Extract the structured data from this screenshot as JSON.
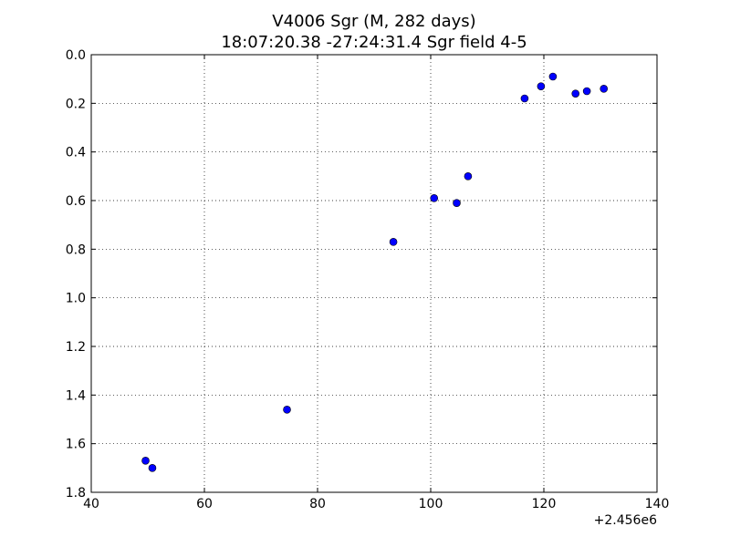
{
  "chart_data": {
    "type": "scatter",
    "title": "V4006 Sgr (M, 282 days)",
    "subtitle": "18:07:20.38 -27:24:31.4 Sgr field 4-5",
    "x_offset_label": "+2.456e6",
    "xlim": [
      40,
      140
    ],
    "ylim": [
      0.0,
      1.8
    ],
    "y_inverted": true,
    "grid": true,
    "x_ticks": [
      40,
      60,
      80,
      100,
      120,
      140
    ],
    "x_tick_labels": [
      "40",
      "60",
      "80",
      "100",
      "120",
      "140"
    ],
    "y_ticks": [
      0.0,
      0.2,
      0.4,
      0.6,
      0.8,
      1.0,
      1.2,
      1.4,
      1.6,
      1.8
    ],
    "y_tick_labels": [
      "0.0",
      "0.2",
      "0.4",
      "0.6",
      "0.8",
      "1.0",
      "1.2",
      "1.4",
      "1.6",
      "1.8"
    ],
    "marker_color": "#0000ff",
    "points": [
      {
        "x": 49.6,
        "y": 1.67
      },
      {
        "x": 50.8,
        "y": 1.7
      },
      {
        "x": 74.6,
        "y": 1.46
      },
      {
        "x": 93.4,
        "y": 0.77
      },
      {
        "x": 100.6,
        "y": 0.59
      },
      {
        "x": 104.6,
        "y": 0.61
      },
      {
        "x": 106.6,
        "y": 0.5
      },
      {
        "x": 116.6,
        "y": 0.18
      },
      {
        "x": 119.5,
        "y": 0.13
      },
      {
        "x": 121.6,
        "y": 0.09
      },
      {
        "x": 125.6,
        "y": 0.16
      },
      {
        "x": 127.6,
        "y": 0.15
      },
      {
        "x": 130.6,
        "y": 0.14
      }
    ]
  }
}
